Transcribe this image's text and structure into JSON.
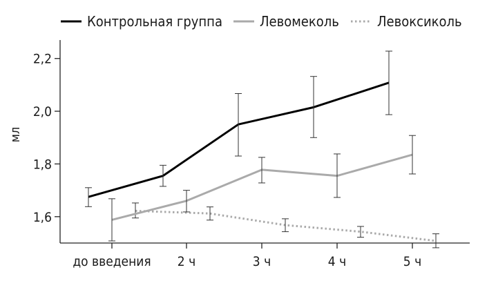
{
  "chart_data": {
    "type": "line",
    "categories": [
      "до введения",
      "2 ч",
      "3 ч",
      "4 ч",
      "5 ч"
    ],
    "ylabel": "мл",
    "xlabel": "",
    "ylim": [
      1.5,
      2.27
    ],
    "yticks": [
      1.6,
      1.8,
      2.0,
      2.2
    ],
    "ytick_labels": [
      "1,6",
      "1,8",
      "2,0",
      "2,2"
    ],
    "grid": false,
    "legend_position": "top",
    "series": [
      {
        "name": "Контрольная группа",
        "color": "#000000",
        "style": "solid",
        "offset": -1,
        "values": [
          1.675,
          1.755,
          1.95,
          2.015,
          2.108
        ],
        "err_low": [
          1.638,
          1.715,
          1.83,
          1.9,
          1.987
        ],
        "err_high": [
          1.71,
          1.795,
          2.067,
          2.132,
          2.228
        ]
      },
      {
        "name": "Левомеколь",
        "color": "#aaaaaa",
        "style": "solid",
        "offset": 0,
        "values": [
          1.588,
          1.66,
          1.778,
          1.755,
          1.835
        ],
        "err_low": [
          1.508,
          1.618,
          1.728,
          1.673,
          1.762
        ],
        "err_high": [
          1.668,
          1.7,
          1.825,
          1.838,
          1.908
        ]
      },
      {
        "name": "Левоксиколь",
        "color": "#aaaaaa",
        "style": "dotted",
        "offset": 1,
        "values": [
          1.622,
          1.612,
          1.568,
          1.543,
          1.508
        ],
        "err_low": [
          1.595,
          1.587,
          1.543,
          1.522,
          1.482
        ],
        "err_high": [
          1.652,
          1.637,
          1.592,
          1.563,
          1.535
        ]
      }
    ]
  }
}
